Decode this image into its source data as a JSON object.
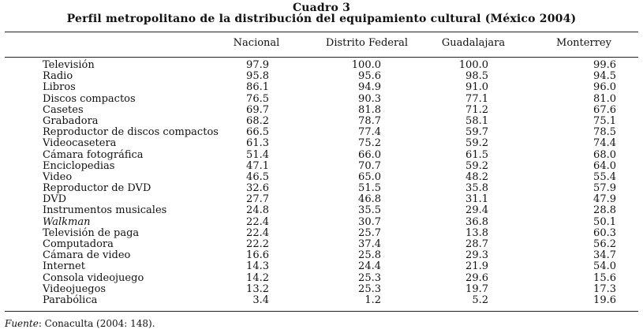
{
  "caption": {
    "title_line_1": "Cuadro 3",
    "title_line_2": "Perfil metropolitano de la distribución del equipamiento cultural (México 2004)"
  },
  "table": {
    "columns": [
      "Nacional",
      "Distrito Federal",
      "Guadalajara",
      "Monterrey"
    ],
    "rows": [
      {
        "label": "Televisión",
        "italic": false,
        "values": [
          "97.9",
          "100.0",
          "100.0",
          "99.6"
        ]
      },
      {
        "label": "Radio",
        "italic": false,
        "values": [
          "95.8",
          "95.6",
          "98.5",
          "94.5"
        ]
      },
      {
        "label": "Libros",
        "italic": false,
        "values": [
          "86.1",
          "94.9",
          "91.0",
          "96.0"
        ]
      },
      {
        "label": "Discos compactos",
        "italic": false,
        "values": [
          "76.5",
          "90.3",
          "77.1",
          "81.0"
        ]
      },
      {
        "label": "Casetes",
        "italic": false,
        "values": [
          "69.7",
          "81.8",
          "71.2",
          "67.6"
        ]
      },
      {
        "label": "Grabadora",
        "italic": false,
        "values": [
          "68.2",
          "78.7",
          "58.1",
          "75.1"
        ]
      },
      {
        "label": "Reproductor de discos compactos",
        "italic": false,
        "values": [
          "66.5",
          "77.4",
          "59.7",
          "78.5"
        ]
      },
      {
        "label": "Videocasetera",
        "italic": false,
        "values": [
          "61.3",
          "75.2",
          "59.2",
          "74.4"
        ]
      },
      {
        "label": "Cámara fotográfica",
        "italic": false,
        "values": [
          "51.4",
          "66.0",
          "61.5",
          "68.0"
        ]
      },
      {
        "label": "Enciclopedias",
        "italic": false,
        "values": [
          "47.1",
          "70.7",
          "59.2",
          "64.0"
        ]
      },
      {
        "label": "Video",
        "italic": false,
        "values": [
          "46.5",
          "65.0",
          "48.2",
          "55.4"
        ]
      },
      {
        "label": "Reproductor de DVD",
        "italic": false,
        "values": [
          "32.6",
          "51.5",
          "35.8",
          "57.9"
        ]
      },
      {
        "label": "DVD",
        "italic": false,
        "values": [
          "27.7",
          "46.8",
          "31.1",
          "47.9"
        ]
      },
      {
        "label": "Instrumentos musicales",
        "italic": false,
        "values": [
          "24.8",
          "35.5",
          "29.4",
          "28.8"
        ]
      },
      {
        "label": "Walkman",
        "italic": true,
        "values": [
          "22.4",
          "30.7",
          "36.8",
          "50.1"
        ]
      },
      {
        "label": "Televisión de paga",
        "italic": false,
        "values": [
          "22.4",
          "25.7",
          "13.8",
          "60.3"
        ]
      },
      {
        "label": "Computadora",
        "italic": false,
        "values": [
          "22.2",
          "37.4",
          "28.7",
          "56.2"
        ]
      },
      {
        "label": "Cámara de video",
        "italic": false,
        "values": [
          "16.6",
          "25.8",
          "29.3",
          "34.7"
        ]
      },
      {
        "label": "Internet",
        "italic": false,
        "values": [
          "14.3",
          "24.4",
          "21.9",
          "54.0"
        ]
      },
      {
        "label": "Consola videojuego",
        "italic": false,
        "values": [
          "14.2",
          "25.3",
          "29.6",
          "15.6"
        ]
      },
      {
        "label": "Videojuegos",
        "italic": false,
        "values": [
          "13.2",
          "25.3",
          "19.7",
          "17.3"
        ]
      },
      {
        "label": "Parabólica",
        "italic": false,
        "values": [
          "3.4",
          "1.2",
          "5.2",
          "19.6"
        ]
      }
    ]
  },
  "source": {
    "label": "Fuente",
    "text": ": Conaculta (2004: 148)."
  }
}
